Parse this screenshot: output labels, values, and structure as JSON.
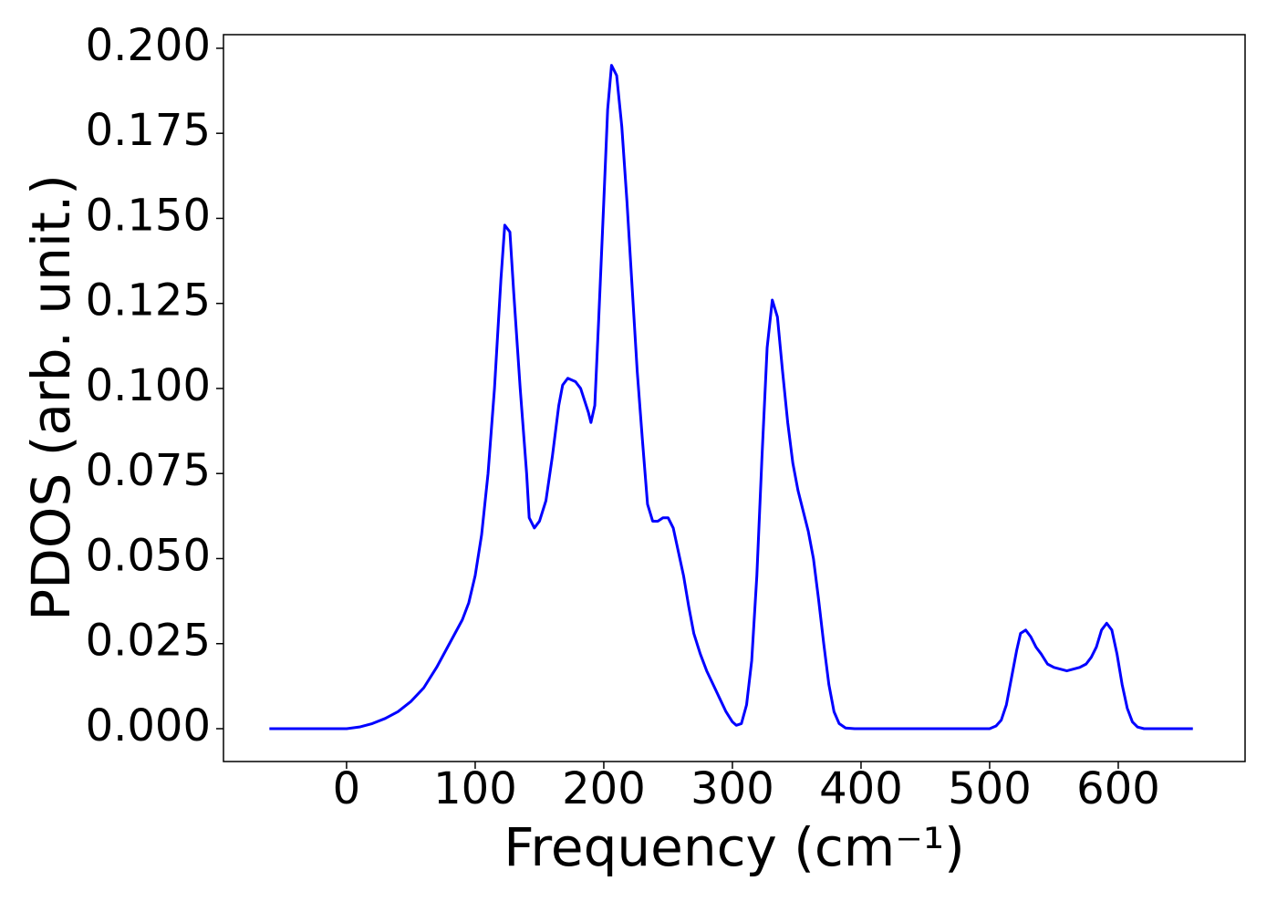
{
  "chart_data": {
    "type": "line",
    "xlabel": "Frequency (cm⁻¹)",
    "ylabel": "PDOS (arb. unit.)",
    "color": "#0000ff",
    "grid": false,
    "xlim": [
      -95.7,
      698.6
    ],
    "ylim": [
      -0.00965,
      0.204
    ],
    "xticks": [
      0,
      100,
      200,
      300,
      400,
      500,
      600
    ],
    "yticks": [
      {
        "value": 0,
        "label": "0.000"
      },
      0.025,
      {
        "value": 0.05,
        "label": "0.050"
      },
      0.075,
      {
        "value": 0.1,
        "label": "0.100"
      },
      0.125,
      {
        "value": 0.15,
        "label": "0.150"
      },
      0.175,
      {
        "value": 0.2,
        "label": "0.200"
      }
    ],
    "x": [
      -60,
      -40,
      -20,
      0,
      10,
      20,
      30,
      40,
      50,
      60,
      70,
      80,
      90,
      95,
      100,
      105,
      110,
      115,
      120,
      123,
      127,
      130,
      135,
      140,
      142,
      146,
      150,
      155,
      160,
      165,
      168,
      172,
      178,
      182,
      188,
      190,
      193,
      196,
      200,
      203,
      206,
      210,
      214,
      218,
      222,
      226,
      230,
      234,
      238,
      242,
      246,
      250,
      254,
      258,
      262,
      266,
      270,
      275,
      280,
      285,
      290,
      295,
      300,
      303,
      307,
      311,
      315,
      319,
      323,
      327,
      331,
      335,
      339,
      343,
      347,
      351,
      355,
      359,
      363,
      367,
      371,
      375,
      379,
      383,
      388,
      395,
      450,
      500,
      505,
      509,
      513,
      517,
      521,
      524,
      528,
      532,
      536,
      540,
      545,
      550,
      555,
      560,
      565,
      570,
      575,
      579,
      583,
      587,
      591,
      595,
      599,
      603,
      607,
      611,
      615,
      620,
      658
    ],
    "values": [
      0,
      0,
      0,
      0,
      0.0005,
      0.0015,
      0.003,
      0.005,
      0.008,
      0.012,
      0.018,
      0.025,
      0.032,
      0.037,
      0.045,
      0.057,
      0.075,
      0.1,
      0.132,
      0.148,
      0.146,
      0.128,
      0.1,
      0.075,
      0.062,
      0.059,
      0.061,
      0.067,
      0.08,
      0.095,
      0.101,
      0.103,
      0.102,
      0.1,
      0.093,
      0.09,
      0.095,
      0.12,
      0.155,
      0.182,
      0.195,
      0.192,
      0.177,
      0.155,
      0.13,
      0.105,
      0.085,
      0.066,
      0.061,
      0.061,
      0.062,
      0.062,
      0.059,
      0.052,
      0.045,
      0.036,
      0.028,
      0.022,
      0.017,
      0.013,
      0.009,
      0.005,
      0.002,
      0.001,
      0.0015,
      0.007,
      0.02,
      0.045,
      0.08,
      0.112,
      0.126,
      0.121,
      0.105,
      0.09,
      0.078,
      0.07,
      0.064,
      0.058,
      0.05,
      0.038,
      0.025,
      0.013,
      0.005,
      0.0015,
      0.0002,
      0,
      0,
      0,
      0.0008,
      0.0025,
      0.007,
      0.015,
      0.023,
      0.028,
      0.029,
      0.027,
      0.024,
      0.022,
      0.019,
      0.018,
      0.0175,
      0.017,
      0.0175,
      0.018,
      0.019,
      0.021,
      0.024,
      0.029,
      0.031,
      0.029,
      0.022,
      0.013,
      0.006,
      0.002,
      0.0005,
      0,
      0
    ]
  }
}
